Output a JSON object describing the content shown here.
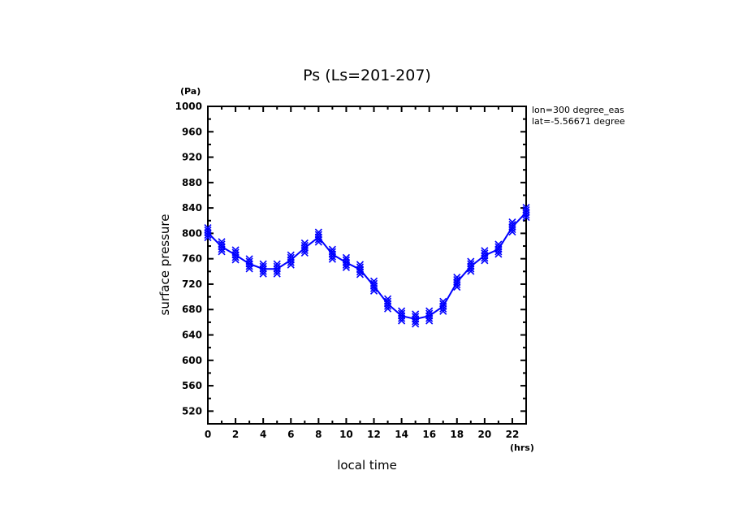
{
  "chart_data": {
    "type": "line",
    "title": "Ps (Ls=201-207)",
    "xlabel": "local time",
    "xunit": "(hrs)",
    "ylabel": "surface pressure",
    "yunit": "(Pa)",
    "annotations": [
      "lon=300 degree_eas",
      "lat=-5.56671 degree"
    ],
    "xlim": [
      0,
      23
    ],
    "ylim": [
      500,
      1000
    ],
    "xticks": [
      0,
      2,
      4,
      6,
      8,
      10,
      12,
      14,
      16,
      18,
      20,
      22
    ],
    "yticks": [
      520,
      560,
      600,
      640,
      680,
      720,
      760,
      800,
      840,
      880,
      920,
      960,
      1000
    ],
    "grid": false,
    "color": "#0000ff",
    "marker": "x",
    "series": [
      {
        "name": "Ps",
        "x": [
          0,
          1,
          2,
          3,
          4,
          5,
          6,
          7,
          8,
          9,
          10,
          11,
          12,
          13,
          14,
          15,
          16,
          17,
          18,
          19,
          20,
          21,
          22,
          23
        ],
        "y": [
          801,
          779,
          766,
          752,
          744,
          744,
          758,
          777,
          794,
          767,
          754,
          743,
          717,
          689,
          670,
          665,
          670,
          685,
          723,
          748,
          765,
          775,
          810,
          833
        ]
      }
    ]
  }
}
